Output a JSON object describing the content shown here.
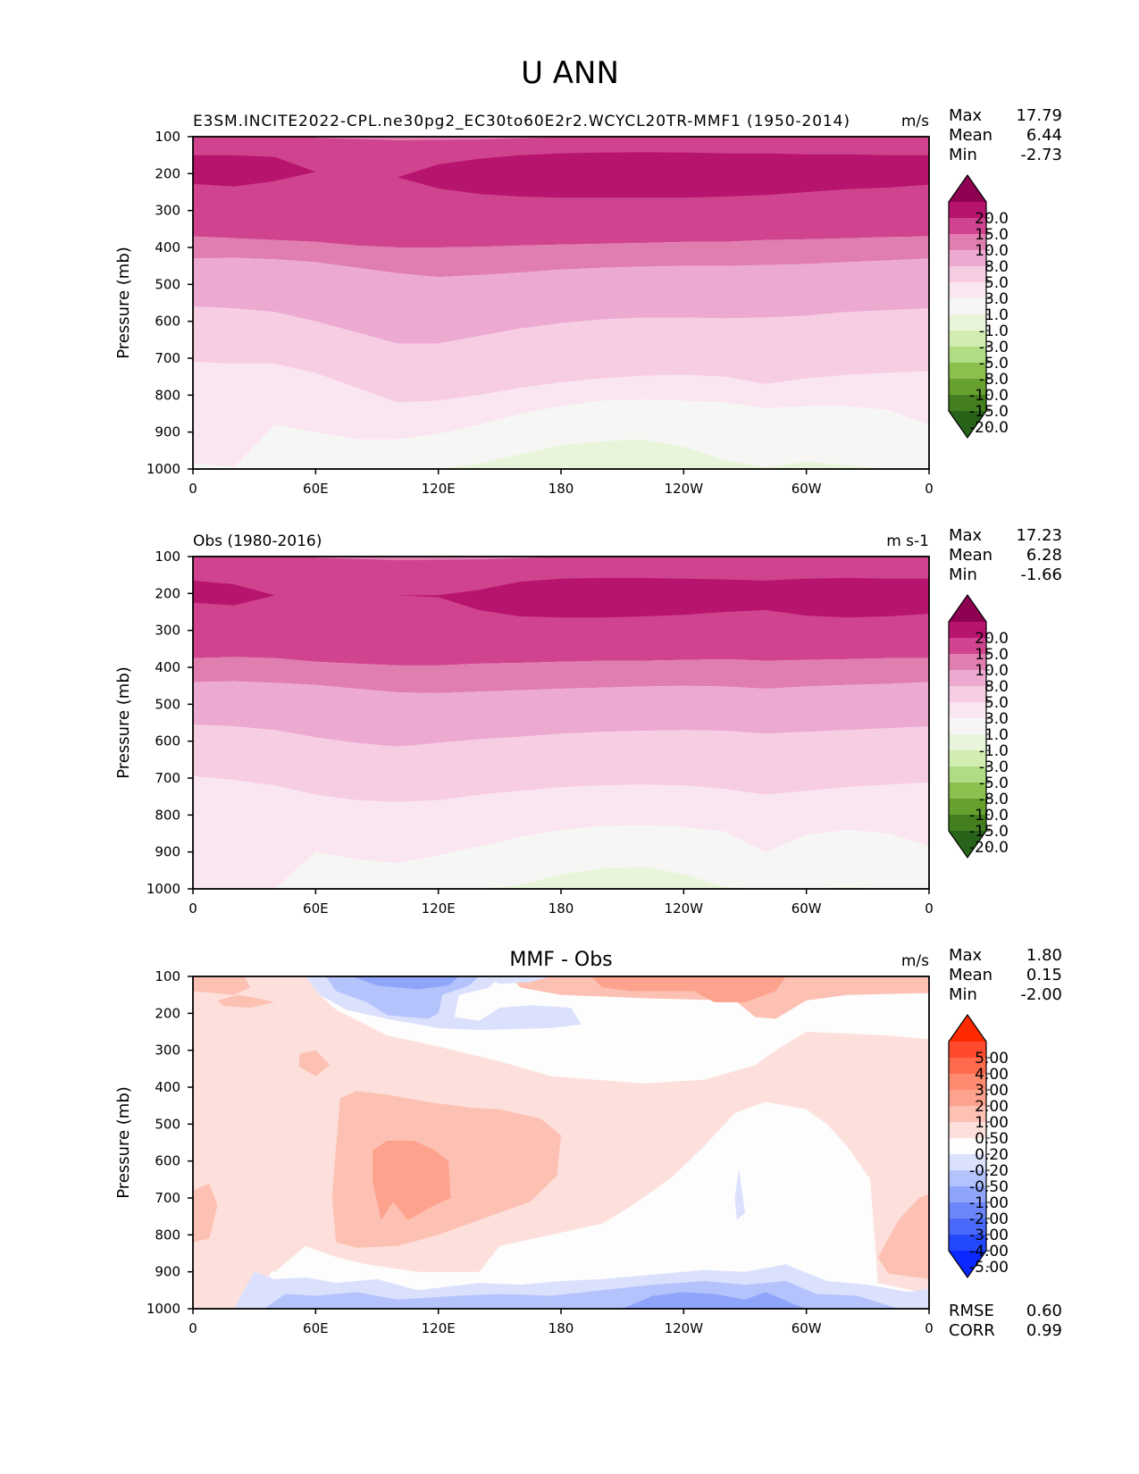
{
  "figure_title": "U ANN",
  "chart_data": [
    {
      "type": "heatmap",
      "panel": "test",
      "title_left": "E3SM.INCITE2022-CPL.ne30pg2_EC30to60E2r2.WCYCL20TR-MMF1 (1950-2014)",
      "title_center": "",
      "title_right": "m/s",
      "xlabel": "",
      "ylabel": "Pressure (mb)",
      "xticks": [
        "0",
        "60E",
        "120E",
        "180",
        "120W",
        "60W",
        "0"
      ],
      "xlim": [
        0,
        360
      ],
      "yticks": [
        "100",
        "200",
        "300",
        "400",
        "500",
        "600",
        "700",
        "800",
        "900",
        "1000"
      ],
      "ylim": [
        1000,
        100
      ],
      "stats": {
        "Max": "17.79",
        "Mean": "6.44",
        "Min": "-2.73"
      },
      "colorbar": {
        "levels": [
          "20.0",
          "15.0",
          "10.0",
          "8.0",
          "5.0",
          "3.0",
          "1.0",
          "-1.0",
          "-3.0",
          "-5.0",
          "-8.0",
          "-10.0",
          "-15.0",
          "-20.0"
        ],
        "colors": [
          "#8e0152",
          "#b7146d",
          "#d0438e",
          "#e07eb0",
          "#edaad1",
          "#f7cde4",
          "#fae6f0",
          "#f6f6f4",
          "#e9f5db",
          "#d2edb2",
          "#b0dc84",
          "#8bc04f",
          "#66a12f",
          "#437f1e",
          "#276419"
        ],
        "extend": "both"
      },
      "contour_boundaries_mb": {
        "lon": [
          0,
          20,
          40,
          60,
          80,
          100,
          120,
          140,
          160,
          180,
          200,
          220,
          240,
          260,
          280,
          300,
          320,
          340,
          360
        ],
        "b_15_upper": [
          150,
          150,
          155,
          195,
          210,
          210,
          175,
          160,
          150,
          145,
          143,
          142,
          143,
          145,
          145,
          148,
          148,
          150,
          150
        ],
        "b_15_lower": [
          228,
          235,
          220,
          195,
          210,
          210,
          240,
          255,
          262,
          265,
          265,
          265,
          265,
          262,
          258,
          250,
          242,
          238,
          230
        ],
        "b_10": [
          370,
          375,
          380,
          385,
          395,
          400,
          400,
          398,
          395,
          392,
          390,
          388,
          385,
          385,
          380,
          378,
          375,
          372,
          370
        ],
        "b_8": [
          430,
          428,
          432,
          440,
          455,
          470,
          480,
          475,
          468,
          460,
          455,
          452,
          450,
          450,
          448,
          445,
          440,
          435,
          430
        ],
        "b_5": [
          560,
          565,
          575,
          600,
          630,
          660,
          660,
          640,
          620,
          605,
          595,
          590,
          590,
          592,
          590,
          585,
          575,
          570,
          565
        ],
        "b_3": [
          710,
          715,
          715,
          740,
          780,
          820,
          815,
          800,
          780,
          765,
          755,
          748,
          745,
          750,
          770,
          755,
          745,
          740,
          735
        ],
        "b_1": [
          985,
          995,
          880,
          900,
          920,
          920,
          905,
          880,
          850,
          830,
          815,
          812,
          815,
          820,
          835,
          830,
          830,
          840,
          880
        ],
        "b_m1": [
          1000,
          1000,
          1000,
          1000,
          1000,
          1000,
          1000,
          985,
          960,
          935,
          925,
          920,
          940,
          975,
          995,
          980,
          990,
          1000,
          1000
        ]
      }
    },
    {
      "type": "heatmap",
      "panel": "reference",
      "title_left": "Obs (1980-2016)",
      "title_center": "",
      "title_right": "m s-1",
      "xlabel": "",
      "ylabel": "Pressure (mb)",
      "xticks": [
        "0",
        "60E",
        "120E",
        "180",
        "120W",
        "60W",
        "0"
      ],
      "xlim": [
        0,
        360
      ],
      "yticks": [
        "100",
        "200",
        "300",
        "400",
        "500",
        "600",
        "700",
        "800",
        "900",
        "1000"
      ],
      "ylim": [
        1000,
        100
      ],
      "stats": {
        "Max": "17.23",
        "Mean": "6.28",
        "Min": "-1.66"
      },
      "colorbar": {
        "levels": [
          "20.0",
          "15.0",
          "10.0",
          "8.0",
          "5.0",
          "3.0",
          "1.0",
          "-1.0",
          "-3.0",
          "-5.0",
          "-8.0",
          "-10.0",
          "-15.0",
          "-20.0"
        ],
        "colors": [
          "#8e0152",
          "#b7146d",
          "#d0438e",
          "#e07eb0",
          "#edaad1",
          "#f7cde4",
          "#fae6f0",
          "#f6f6f4",
          "#e9f5db",
          "#d2edb2",
          "#b0dc84",
          "#8bc04f",
          "#66a12f",
          "#437f1e",
          "#276419"
        ],
        "extend": "both"
      },
      "contour_boundaries_mb": {
        "lon": [
          0,
          20,
          40,
          60,
          80,
          100,
          120,
          140,
          160,
          180,
          200,
          220,
          240,
          260,
          280,
          300,
          320,
          340,
          360
        ],
        "b_15_upper": [
          165,
          175,
          205,
          205,
          205,
          205,
          205,
          190,
          168,
          160,
          158,
          158,
          160,
          162,
          165,
          160,
          158,
          160,
          160
        ],
        "b_15_lower": [
          225,
          232,
          205,
          205,
          205,
          205,
          210,
          245,
          262,
          265,
          265,
          262,
          258,
          250,
          245,
          260,
          265,
          262,
          255
        ],
        "b_10": [
          375,
          372,
          375,
          385,
          390,
          395,
          395,
          390,
          388,
          385,
          382,
          382,
          380,
          378,
          382,
          380,
          378,
          375,
          375
        ],
        "b_8": [
          440,
          438,
          442,
          448,
          458,
          468,
          470,
          466,
          462,
          458,
          455,
          452,
          450,
          452,
          458,
          452,
          448,
          445,
          440
        ],
        "b_5": [
          555,
          560,
          570,
          590,
          605,
          615,
          605,
          595,
          588,
          580,
          575,
          572,
          570,
          572,
          580,
          575,
          570,
          565,
          560
        ],
        "b_3": [
          695,
          705,
          720,
          745,
          760,
          765,
          760,
          745,
          735,
          725,
          720,
          718,
          720,
          730,
          745,
          735,
          725,
          718,
          712
        ],
        "b_1": [
          1000,
          1000,
          1000,
          900,
          920,
          930,
          910,
          885,
          860,
          840,
          830,
          828,
          832,
          845,
          900,
          855,
          840,
          850,
          885
        ],
        "b_m1": [
          1000,
          1000,
          1000,
          1000,
          1000,
          1000,
          1000,
          1000,
          990,
          960,
          945,
          940,
          960,
          995,
          1000,
          1000,
          995,
          1000,
          1000
        ]
      }
    },
    {
      "type": "heatmap",
      "panel": "difference",
      "title_left": "",
      "title_center": "MMF - Obs",
      "title_right": "m/s",
      "xlabel": "",
      "ylabel": "Pressure (mb)",
      "xticks": [
        "0",
        "60E",
        "120E",
        "180",
        "120W",
        "60W",
        "0"
      ],
      "xlim": [
        0,
        360
      ],
      "yticks": [
        "100",
        "200",
        "300",
        "400",
        "500",
        "600",
        "700",
        "800",
        "900",
        "1000"
      ],
      "ylim": [
        1000,
        100
      ],
      "stats": {
        "Max": "1.80",
        "Mean": "0.15",
        "Min": "-2.00"
      },
      "metrics": {
        "RMSE": "0.60",
        "CORR": "0.99"
      },
      "colorbar": {
        "levels": [
          "5.00",
          "4.00",
          "3.00",
          "2.00",
          "1.00",
          "0.50",
          "0.20",
          "-0.20",
          "-0.50",
          "-1.00",
          "-2.00",
          "-3.00",
          "-4.00",
          "-5.00"
        ],
        "colors": [
          "#ff2a00",
          "#ff4a2e",
          "#ff6a4d",
          "#fe8a70",
          "#fda28d",
          "#fdc1b4",
          "#fde0db",
          "#fdfdfd",
          "#dbe1fd",
          "#b4c3fc",
          "#8fa5fa",
          "#6a86f9",
          "#4a69fb",
          "#2449fc",
          "#0a28ff"
        ],
        "extend": "both"
      },
      "regions": [
        {
          "level_range": "2.00 to 1.00",
          "lon": [
            40,
            140
          ],
          "p": [
            600,
            830
          ],
          "note": "core maximum near 90E-140E, 650-820 mb"
        },
        {
          "level_range": "1.00 to 0.50",
          "lon": [
            70,
            190
          ],
          "p": [
            480,
            900
          ],
          "note": "broad positive region over Indian Ocean / W Pacific"
        },
        {
          "level_range": "1.00 to 0.50",
          "lon": [
            170,
            300
          ],
          "p": [
            100,
            165
          ],
          "note": "upper-level positive band"
        },
        {
          "level_range": "-0.50 to -1.00",
          "lon": [
            60,
            130
          ],
          "p": [
            100,
            175
          ],
          "note": "upper-level negative over Asia"
        },
        {
          "level_range": "-0.20 to -1.00",
          "lon": [
            30,
            360
          ],
          "p": [
            920,
            1000
          ],
          "note": "near-surface negative band"
        }
      ]
    }
  ]
}
